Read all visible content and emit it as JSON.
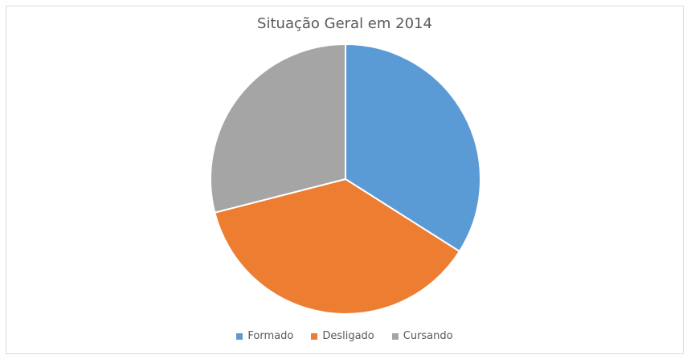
{
  "chart_data": {
    "type": "pie",
    "title": "Situação Geral em 2014",
    "categories": [
      "Formado",
      "Desligado",
      "Cursando"
    ],
    "values": [
      34,
      37,
      29
    ],
    "unit": "%",
    "colors": [
      "#5b9bd5",
      "#ed7d31",
      "#a5a5a5"
    ],
    "legend_position": "bottom",
    "start_angle_deg": 0,
    "direction": "clockwise"
  }
}
